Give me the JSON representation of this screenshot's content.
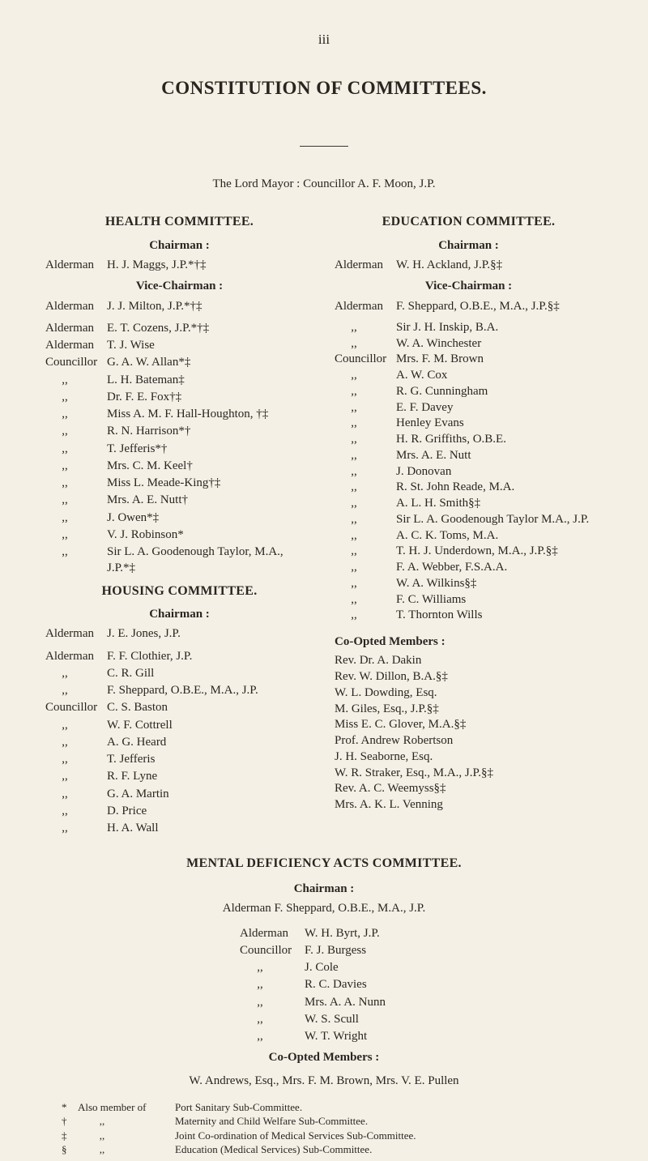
{
  "page_number": "iii",
  "title": "CONSTITUTION OF COMMITTEES.",
  "lord_mayor": "The Lord Mayor : Councillor A. F. Moon, J.P.",
  "left": {
    "health_title": "HEALTH COMMITTEE.",
    "chairman_label": "Chairman :",
    "chairman_pre": "Alderman",
    "chairman_name": "H. J. Maggs, J.P.*†‡",
    "vice_label": "Vice-Chairman :",
    "vice_pre": "Alderman",
    "vice_name": "J. J. Milton, J.P.*†‡",
    "rows": [
      {
        "pre": "Alderman",
        "name": "E. T. Cozens, J.P.*†‡"
      },
      {
        "pre": "Alderman",
        "name": "T. J. Wise"
      },
      {
        "pre": "Councillor",
        "name": "G. A. W. Allan*‡"
      },
      {
        "ditto": ",,",
        "name": "L. H. Bateman‡"
      },
      {
        "ditto": ",,",
        "name": "Dr. F. E. Fox†‡"
      },
      {
        "ditto": ",,",
        "name": "Miss A. M. F. Hall-Houghton, †‡"
      },
      {
        "ditto": ",,",
        "name": "R. N. Harrison*†"
      },
      {
        "ditto": ",,",
        "name": "T. Jefferis*†"
      },
      {
        "ditto": ",,",
        "name": "Mrs. C. M. Keel†"
      },
      {
        "ditto": ",,",
        "name": "Miss L. Meade-King†‡"
      },
      {
        "ditto": ",,",
        "name": "Mrs. A. E. Nutt†"
      },
      {
        "ditto": ",,",
        "name": "J. Owen*‡"
      },
      {
        "ditto": ",,",
        "name": "V. J. Robinson*"
      },
      {
        "ditto": ",,",
        "name": "Sir L. A. Goodenough Taylor, M.A., J.P.*‡"
      }
    ],
    "housing_title": "HOUSING COMMITTEE.",
    "housing_chair_label": "Chairman :",
    "housing_chair_pre": "Alderman",
    "housing_chair_name": "J. E. Jones, J.P.",
    "housing_rows": [
      {
        "pre": "Alderman",
        "name": "F. F. Clothier, J.P."
      },
      {
        "ditto": ",,",
        "name": "C. R. Gill"
      },
      {
        "ditto": ",,",
        "name": "F. Sheppard, O.B.E., M.A., J.P."
      },
      {
        "pre": "Councillor",
        "name": "C. S. Baston"
      },
      {
        "ditto": ",,",
        "name": "W. F. Cottrell"
      },
      {
        "ditto": ",,",
        "name": "A. G. Heard"
      },
      {
        "ditto": ",,",
        "name": "T. Jefferis"
      },
      {
        "ditto": ",,",
        "name": "R. F. Lyne"
      },
      {
        "ditto": ",,",
        "name": "G. A. Martin"
      },
      {
        "ditto": ",,",
        "name": "D. Price"
      },
      {
        "ditto": ",,",
        "name": "H. A. Wall"
      }
    ]
  },
  "right": {
    "edu_title": "EDUCATION COMMITTEE.",
    "chairman_label": "Chairman :",
    "chairman_pre": "Alderman",
    "chairman_name": "W. H. Ackland, J.P.§‡",
    "vice_label": "Vice-Chairman :",
    "vice_pre": "Alderman",
    "vice_name": "F. Sheppard, O.B.E., M.A., J.P.§‡",
    "rows": [
      {
        "ditto": ",,",
        "name": "Sir J. H. Inskip, B.A."
      },
      {
        "ditto": ",,",
        "name": "W. A. Winchester"
      },
      {
        "pre": "Councillor",
        "name": "Mrs. F. M. Brown"
      },
      {
        "ditto": ",,",
        "name": "A. W. Cox"
      },
      {
        "ditto": ",,",
        "name": "R. G. Cunningham"
      },
      {
        "ditto": ",,",
        "name": "E. F. Davey"
      },
      {
        "ditto": ",,",
        "name": "Henley Evans"
      },
      {
        "ditto": ",,",
        "name": "H. R. Griffiths, O.B.E."
      },
      {
        "ditto": ",,",
        "name": "Mrs. A. E. Nutt"
      },
      {
        "ditto": ",,",
        "name": "J. Donovan"
      },
      {
        "ditto": ",,",
        "name": "R. St. John Reade, M.A."
      },
      {
        "ditto": ",,",
        "name": "A. L. H. Smith§‡"
      },
      {
        "ditto": ",,",
        "name": "Sir L. A. Goodenough Taylor M.A., J.P."
      },
      {
        "ditto": ",,",
        "name": "A. C. K. Toms, M.A."
      },
      {
        "ditto": ",,",
        "name": "T. H. J. Underdown, M.A., J.P.§‡"
      },
      {
        "ditto": ",,",
        "name": "F. A. Webber, F.S.A.A."
      },
      {
        "ditto": ",,",
        "name": "W. A. Wilkins§‡"
      },
      {
        "ditto": ",,",
        "name": "F. C. Williams"
      },
      {
        "ditto": ",,",
        "name": "T. Thornton Wills"
      }
    ],
    "coopt_label": "Co-Opted Members :",
    "coopt": [
      "Rev. Dr. A. Dakin",
      "Rev. W. Dillon, B.A.§‡",
      "W. L. Dowding, Esq.",
      "M. Giles, Esq., J.P.§‡",
      "Miss E. C. Glover, M.A.§‡",
      "Prof. Andrew Robertson",
      "J. H. Seaborne, Esq.",
      "W. R. Straker, Esq., M.A., J.P.§‡",
      "Rev. A. C. Weemyss§‡",
      "Mrs. A. K. L. Venning"
    ]
  },
  "mental": {
    "title": "MENTAL DEFICIENCY ACTS COMMITTEE.",
    "chair_label": "Chairman :",
    "chair_line": "Alderman F. Sheppard, O.B.E., M.A., J.P.",
    "rows": [
      {
        "pre": "Alderman",
        "name": "W. H. Byrt, J.P."
      },
      {
        "pre": "Councillor",
        "name": "F. J. Burgess"
      },
      {
        "ditto": ",,",
        "name": "J. Cole"
      },
      {
        "ditto": ",,",
        "name": "R. C. Davies"
      },
      {
        "ditto": ",,",
        "name": "Mrs. A. A. Nunn"
      },
      {
        "ditto": ",,",
        "name": "W. S. Scull"
      },
      {
        "ditto": ",,",
        "name": "W. T. Wright"
      }
    ],
    "coopt_label": "Co-Opted Members :",
    "coopt_line": "W. Andrews, Esq., Mrs. F. M. Brown, Mrs. V. E. Pullen"
  },
  "footnotes": [
    {
      "mark": "*",
      "pre": "Also member of",
      "text": "Port Sanitary Sub-Committee."
    },
    {
      "mark": "†",
      "ditto": ",,",
      "text": "Maternity and Child Welfare Sub-Committee."
    },
    {
      "mark": "‡",
      "ditto": ",,",
      "text": "Joint Co-ordination of Medical Services Sub-Committee."
    },
    {
      "mark": "§",
      "ditto": ",,",
      "text": "Education (Medical Services) Sub-Committee."
    }
  ]
}
